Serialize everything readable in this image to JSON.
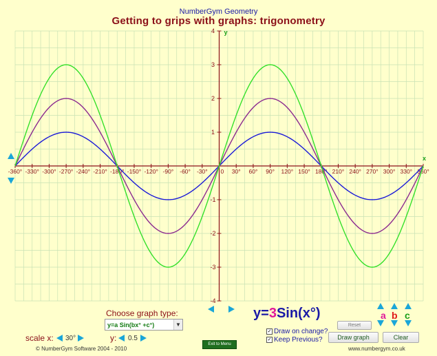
{
  "header": {
    "brand": "NumberGym Geometry",
    "title": "Getting to grips with graphs: trigonometry"
  },
  "chart_data": {
    "type": "line",
    "xlabel": "x",
    "ylabel": "y",
    "xlim": [
      -360,
      360
    ],
    "ylim": [
      -4,
      4
    ],
    "x_tick_labels": [
      "-360°",
      "-330°",
      "-300°",
      "-270°",
      "-240°",
      "-210°",
      "-180°",
      "-150°",
      "-120°",
      "-90°",
      "-60°",
      "-30°",
      "0",
      "30°",
      "60°",
      "90°",
      "120°",
      "150°",
      "180°",
      "210°",
      "240°",
      "270°",
      "300°",
      "330°",
      "360°"
    ],
    "y_tick_labels": [
      "-4",
      "-3",
      "-2",
      "-1",
      "1",
      "2",
      "3",
      "4"
    ],
    "grid": true,
    "series": [
      {
        "function": "y=Sin(x°)",
        "amplitude": 1,
        "color": "#1a1ad8"
      },
      {
        "function": "y=2Sin(x°)",
        "amplitude": 2,
        "color": "#8b2a8f"
      },
      {
        "function": "y=3Sin(x°)",
        "amplitude": 3,
        "color": "#33e02a"
      }
    ]
  },
  "controls": {
    "choose_label": "Choose graph type:",
    "graph_type": "y=a Sin(bx° +c°)",
    "equation_prefix": "y=",
    "equation_a": "3",
    "equation_suffix": "Sin(x°)",
    "scale_x_label": "scale x:",
    "scale_x_value": "30°",
    "scale_y_label": "y:",
    "scale_y_value": "0.5",
    "param_a": "a",
    "param_b": "b",
    "param_c": "c",
    "reset": "Reset",
    "draw_graph": "Draw graph",
    "clear": "Clear",
    "draw_on_change": "Draw on change?",
    "keep_previous": "Keep Previous?",
    "exit": "Exit to Menu"
  },
  "footer": {
    "copyright": "© NumberGym Software 2004 - 2010",
    "website": "www.numbergym.co.uk"
  },
  "colors": {
    "axis": "#8b0f18",
    "grid": "#c8e2b4",
    "title": "#8b0f18",
    "arrows": "#1aa6d8"
  }
}
